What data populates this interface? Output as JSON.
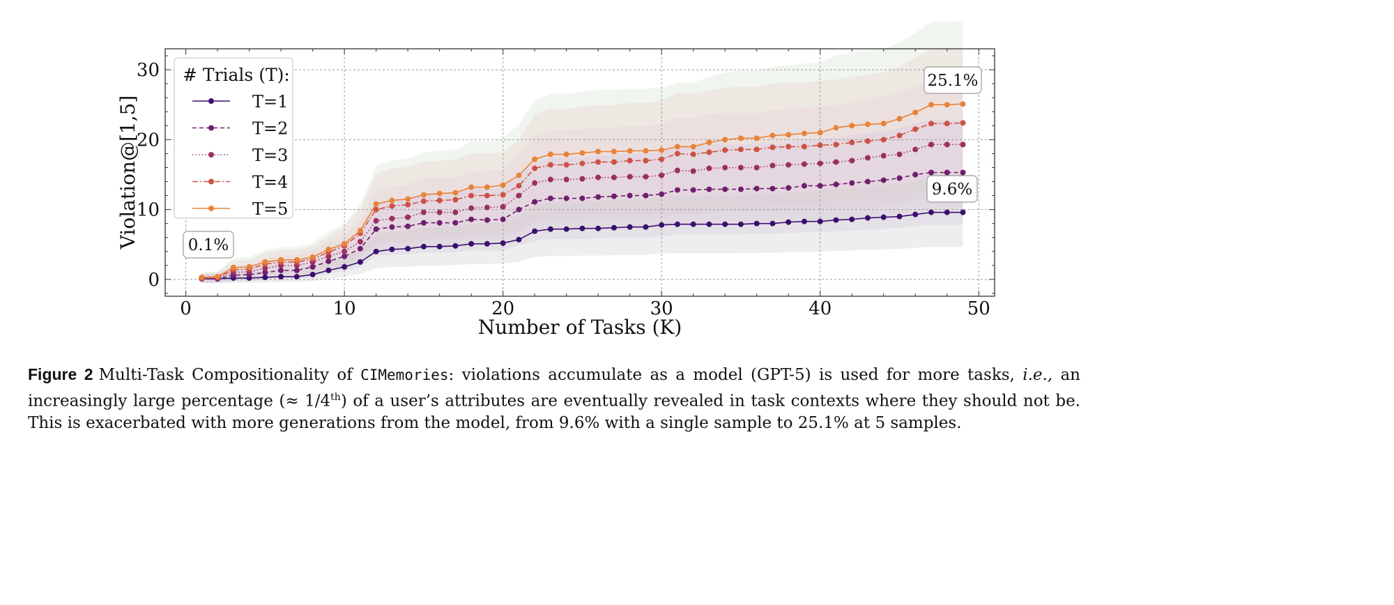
{
  "chart_data": {
    "type": "line",
    "xlabel": "Number of Tasks (K)",
    "ylabel": "Violation@[1,5]",
    "xlim": [
      -1.3,
      51
    ],
    "ylim": [
      -2.4,
      33
    ],
    "xticks": [
      0,
      10,
      20,
      30,
      40,
      50
    ],
    "yticks": [
      0,
      10,
      20,
      30
    ],
    "grid": true,
    "legend_title": "# Trials (T):",
    "legend_position": "top-left",
    "x": [
      1,
      2,
      3,
      4,
      5,
      6,
      7,
      8,
      9,
      10,
      11,
      12,
      13,
      14,
      15,
      16,
      17,
      18,
      19,
      20,
      21,
      22,
      23,
      24,
      25,
      26,
      27,
      28,
      29,
      30,
      31,
      32,
      33,
      34,
      35,
      36,
      37,
      38,
      39,
      40,
      41,
      42,
      43,
      44,
      45,
      46,
      47,
      48,
      49
    ],
    "series": [
      {
        "name": "T=1",
        "color": "#3b0f6f",
        "dash": "solid",
        "values": [
          0.1,
          0.1,
          0.2,
          0.2,
          0.3,
          0.4,
          0.4,
          0.7,
          1.3,
          1.8,
          2.5,
          4.0,
          4.3,
          4.4,
          4.7,
          4.7,
          4.8,
          5.1,
          5.1,
          5.2,
          5.7,
          6.9,
          7.2,
          7.2,
          7.3,
          7.3,
          7.4,
          7.5,
          7.5,
          7.8,
          7.9,
          7.9,
          7.9,
          7.9,
          7.9,
          8.0,
          8.0,
          8.2,
          8.3,
          8.3,
          8.5,
          8.6,
          8.8,
          8.9,
          9.0,
          9.3,
          9.6,
          9.6,
          9.6
        ]
      },
      {
        "name": "T=2",
        "color": "#6e1f6e",
        "dash": "dashed",
        "values": [
          0.1,
          0.1,
          0.6,
          0.7,
          1.0,
          1.3,
          1.3,
          1.8,
          2.6,
          3.3,
          4.4,
          7.2,
          7.5,
          7.6,
          8.1,
          8.1,
          8.1,
          8.6,
          8.5,
          8.6,
          10.0,
          11.1,
          11.6,
          11.6,
          11.6,
          11.8,
          11.9,
          12.0,
          12.0,
          12.2,
          12.8,
          12.8,
          12.9,
          12.9,
          12.9,
          13.0,
          13.0,
          13.1,
          13.4,
          13.4,
          13.6,
          13.8,
          14.0,
          14.2,
          14.5,
          15.0,
          15.3,
          15.3,
          15.3
        ]
      },
      {
        "name": "T=3",
        "color": "#9b3060",
        "dash": "dotted",
        "values": [
          0.1,
          0.2,
          1.0,
          1.1,
          1.6,
          2.0,
          2.0,
          2.5,
          3.3,
          4.0,
          5.4,
          8.4,
          8.7,
          8.9,
          9.6,
          9.6,
          9.6,
          10.2,
          10.3,
          10.4,
          12.0,
          13.8,
          14.3,
          14.3,
          14.4,
          14.6,
          14.6,
          14.7,
          14.7,
          14.9,
          15.6,
          15.5,
          15.9,
          16.0,
          16.0,
          16.0,
          16.3,
          16.4,
          16.5,
          16.6,
          16.8,
          17.0,
          17.4,
          17.7,
          17.9,
          18.6,
          19.3,
          19.3,
          19.3
        ]
      },
      {
        "name": "T=4",
        "color": "#cc5246",
        "dash": "dashdot",
        "values": [
          0.2,
          0.3,
          1.4,
          1.5,
          2.2,
          2.5,
          2.5,
          2.9,
          3.9,
          4.8,
          6.6,
          10.0,
          10.5,
          10.7,
          11.2,
          11.3,
          11.4,
          12.0,
          12.0,
          12.1,
          13.4,
          15.9,
          16.4,
          16.4,
          16.6,
          16.8,
          16.8,
          17.0,
          17.0,
          17.2,
          18.0,
          17.9,
          18.2,
          18.5,
          18.6,
          18.6,
          18.9,
          19.0,
          19.0,
          19.2,
          19.3,
          19.6,
          19.8,
          20.0,
          20.6,
          21.5,
          22.3,
          22.3,
          22.4
        ]
      },
      {
        "name": "T=5",
        "color": "#e8833a",
        "dash": "solid",
        "values": [
          0.3,
          0.4,
          1.7,
          1.8,
          2.5,
          2.8,
          2.8,
          3.2,
          4.3,
          5.1,
          7.0,
          10.8,
          11.3,
          11.5,
          12.1,
          12.3,
          12.4,
          13.2,
          13.2,
          13.5,
          14.9,
          17.2,
          17.9,
          17.9,
          18.1,
          18.3,
          18.3,
          18.4,
          18.4,
          18.5,
          19.0,
          19.0,
          19.6,
          20.0,
          20.2,
          20.2,
          20.6,
          20.7,
          20.9,
          21.0,
          21.7,
          22.0,
          22.2,
          22.3,
          23.0,
          23.9,
          25.0,
          25.0,
          25.1
        ]
      }
    ],
    "annotations": [
      {
        "text": "0.1%",
        "x": 1,
        "y": 0.1
      },
      {
        "text": "25.1%",
        "x": 49,
        "y": 25.1
      },
      {
        "text": "9.6%",
        "x": 49,
        "y": 9.6
      }
    ]
  },
  "caption": {
    "label": "Figure 2",
    "part1": "Multi-Task Compositionality of ",
    "name": "CIMemories",
    "part2": ": violations accumulate as a model (GPT-5) is used for more tasks, ",
    "ie": "i.e.,",
    "part3": " an increasingly large percentage (≈ 1/4",
    "sup": "th",
    "part4": ") of a user’s attributes are eventually revealed in task contexts where they should not be. This is exacerbated with more generations from the model, from 9.6% with a single sample to 25.1% at 5 samples."
  }
}
